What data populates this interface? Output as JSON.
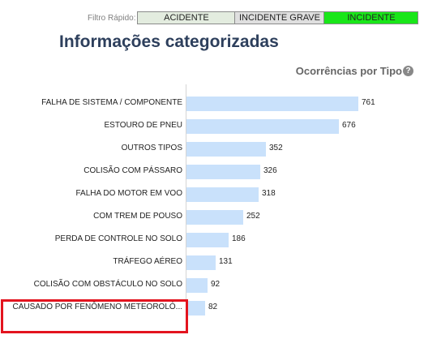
{
  "filter": {
    "label": "Filtro Rápido:",
    "options": [
      "ACIDENTE",
      "INCIDENTE GRAVE",
      "INCIDENTE"
    ],
    "selected": "INCIDENTE",
    "colors": {
      "acidente": "#e3ecdf",
      "incidente_grave": "#dfdfdf",
      "incidente": "#19e619"
    }
  },
  "page_title": "Informações categorizadas",
  "chart_title": "Ocorrências por Tipo",
  "help_icon": "?",
  "chart_data": {
    "type": "bar",
    "orientation": "horizontal",
    "categories": [
      "FALHA DE SISTEMA / COMPONENTE",
      "ESTOURO DE PNEU",
      "OUTROS TIPOS",
      "COLISÃO COM PÁSSARO",
      "FALHA DO MOTOR EM VOO",
      "COM TREM DE POUSO",
      "PERDA DE CONTROLE NO SOLO",
      "TRÁFEGO AÉREO",
      "COLISÃO COM OBSTÁCULO NO SOLO",
      "CAUSADO POR FENÔMENO METEOROLÓ..."
    ],
    "values": [
      761,
      676,
      352,
      326,
      318,
      252,
      186,
      131,
      92,
      82
    ],
    "bar_color": "#c9e1fb",
    "title": "Ocorrências por Tipo",
    "xlim": [
      0,
      761
    ],
    "grid": false
  },
  "highlight": {
    "category": "CAUSADO POR FENÔMENO METEOROLÓ...",
    "color": "#e3141f"
  }
}
